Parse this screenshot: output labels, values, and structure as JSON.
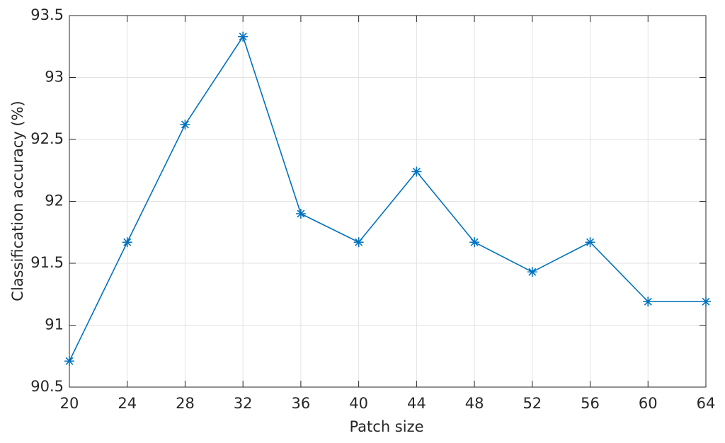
{
  "chart_data": {
    "type": "line",
    "xlabel": "Patch size",
    "ylabel": "Classification accuracy (%)",
    "x": [
      20,
      24,
      28,
      32,
      36,
      40,
      44,
      48,
      52,
      56,
      60,
      64
    ],
    "series": [
      {
        "color": "#0072bd",
        "values": [
          90.71,
          91.67,
          92.62,
          93.33,
          91.9,
          91.67,
          92.24,
          91.67,
          91.43,
          91.67,
          91.19,
          91.19
        ]
      }
    ],
    "xlim": [
      20,
      64
    ],
    "xticks": [
      20,
      24,
      28,
      32,
      36,
      40,
      44,
      48,
      52,
      56,
      60,
      64
    ],
    "ylim": [
      90.5,
      93.5
    ],
    "yticks": [
      90.5,
      91,
      91.5,
      92,
      92.5,
      93,
      93.5
    ],
    "grid": true,
    "marker": "asterisk"
  }
}
